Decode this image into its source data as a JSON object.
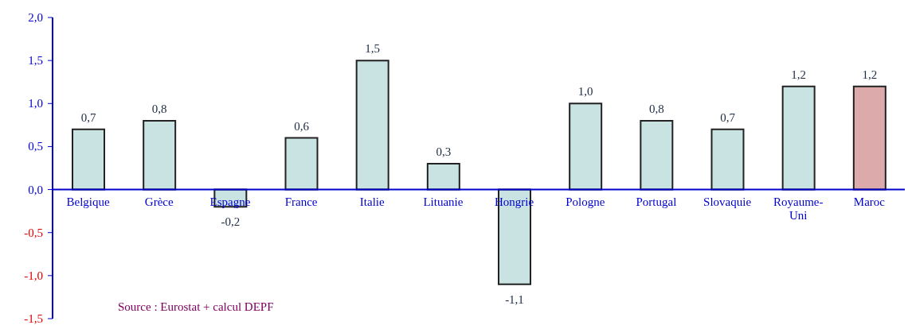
{
  "chart_data": {
    "type": "bar",
    "categories": [
      "Belgique",
      "Grèce",
      "Espagne",
      "France",
      "Italie",
      "Lituanie",
      "Hongrie",
      "Pologne",
      "Portugal",
      "Slovaquie",
      "Royaume-Uni",
      "Maroc"
    ],
    "values": [
      0.7,
      0.8,
      -0.2,
      0.6,
      1.5,
      0.3,
      -1.1,
      1.0,
      0.8,
      0.7,
      1.2,
      1.2
    ],
    "colors": [
      "#c9e2e2",
      "#c9e2e2",
      "#c9e2e2",
      "#c9e2e2",
      "#c9e2e2",
      "#c9e2e2",
      "#c9e2e2",
      "#c9e2e2",
      "#c9e2e2",
      "#c9e2e2",
      "#c9e2e2",
      "#dcaaaa"
    ],
    "value_labels": [
      "0,7",
      "0,8",
      "-0,2",
      "0,6",
      "1,5",
      "0,3",
      "-1,1",
      "1,0",
      "0,8",
      "0,7",
      "1,2",
      "1,2"
    ],
    "ylim": [
      -1.5,
      2.0
    ],
    "yticks": [
      {
        "value": -1.5,
        "label": "-1,5"
      },
      {
        "value": -1.0,
        "label": "-1,0"
      },
      {
        "value": -0.5,
        "label": "-0,5"
      },
      {
        "value": 0,
        "label": "0,0"
      },
      {
        "value": 0.5,
        "label": "0,5"
      },
      {
        "value": 1.0,
        "label": "1,0"
      },
      {
        "value": 1.5,
        "label": "1,5"
      },
      {
        "value": 2.0,
        "label": "2,0"
      }
    ],
    "grid": false,
    "annotations": [
      "Source : Eurostat + calcul DEPF"
    ]
  }
}
